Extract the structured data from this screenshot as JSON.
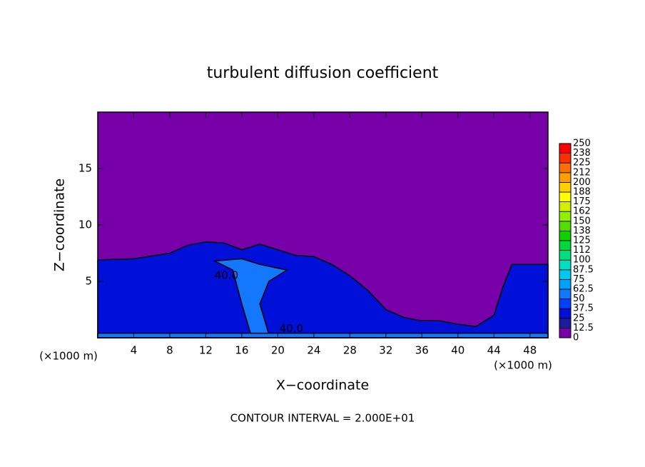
{
  "chart_data": {
    "type": "contour",
    "title": "turbulent diffusion coefficient",
    "xlabel": "X−coordinate",
    "ylabel": "Z−coordinate",
    "x_unit": "(×1000 m)",
    "y_unit": "(×1000 m)",
    "footer": "CONTOUR INTERVAL = 2.000E+01",
    "xlim": [
      0,
      50
    ],
    "ylim": [
      0,
      20
    ],
    "xticks": [
      4,
      8,
      12,
      16,
      20,
      24,
      28,
      32,
      36,
      40,
      44,
      48
    ],
    "yticks": [
      5,
      10,
      15
    ],
    "background_level": 0,
    "colorbar_ticks": [
      0,
      12.5,
      25,
      37.5,
      50,
      62.5,
      75,
      87.5,
      100,
      112,
      125,
      138,
      150,
      162,
      175,
      188,
      200,
      212,
      225,
      238,
      250
    ],
    "colorbar_colors": [
      "#7800a8",
      "#1c1c9c",
      "#0010d8",
      "#0040ff",
      "#1478ff",
      "#00a0ff",
      "#00c8f0",
      "#00e0c0",
      "#00e080",
      "#00d840",
      "#10d000",
      "#50e000",
      "#90f000",
      "#d0f000",
      "#ffff00",
      "#ffd000",
      "#ffa000",
      "#ff7000",
      "#ff3000",
      "#ff0000"
    ],
    "colorbar_top_color": "#ff8080",
    "regions": [
      {
        "value": 30,
        "x": [
          0,
          4,
          8,
          10,
          12,
          14,
          16,
          18,
          20,
          22,
          24,
          26,
          28,
          30,
          32,
          34,
          36,
          38,
          40,
          42,
          44,
          45,
          46,
          50,
          50,
          0
        ],
        "z": [
          6.9,
          7,
          7.5,
          8.2,
          8.5,
          8.4,
          7.8,
          8.3,
          7.8,
          7.3,
          7.2,
          6.5,
          5.5,
          4.2,
          2.5,
          1.8,
          1.5,
          1.5,
          1.2,
          1,
          2,
          4.5,
          6.5,
          6.5,
          0,
          0
        ]
      },
      {
        "value": 50,
        "x": [
          13,
          15,
          16,
          17,
          19,
          18,
          19,
          21,
          18,
          16
        ],
        "z": [
          6.8,
          6,
          3,
          0.3,
          0.3,
          3,
          5,
          6,
          6.5,
          7
        ]
      },
      {
        "value": 50,
        "x": [
          0,
          50,
          50,
          0
        ],
        "z": [
          0,
          0,
          0.4,
          0.4
        ]
      }
    ],
    "contour_labels": [
      {
        "value": 40,
        "label": "40.0",
        "x": 14.3,
        "z": 5.5
      },
      {
        "value": 40,
        "label": "40.0",
        "x": 21.5,
        "z": 0.8
      }
    ]
  }
}
